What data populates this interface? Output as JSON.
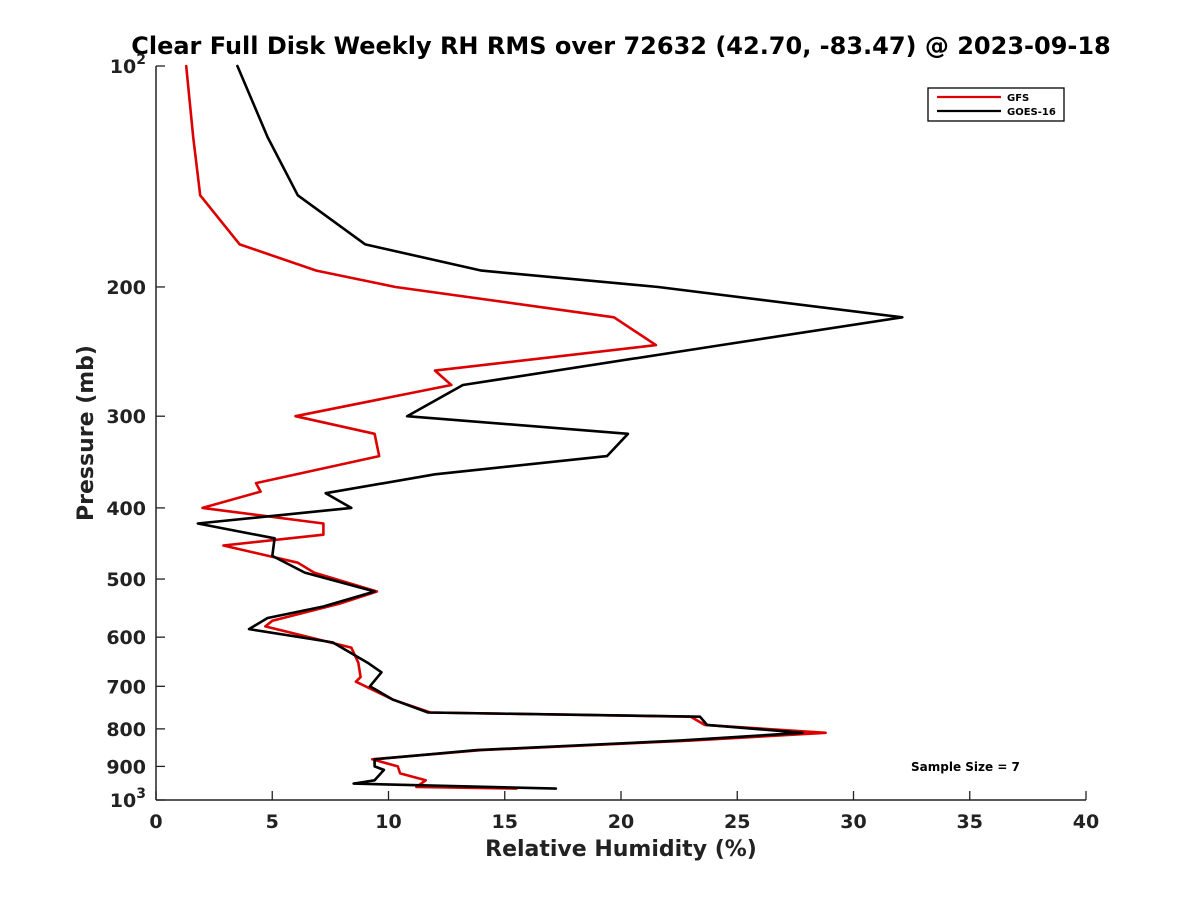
{
  "chart_data": {
    "type": "line",
    "title": "Clear Full Disk Weekly RH RMS over 72632 (42.70, -83.47) @ 2023-09-18",
    "xlabel": "Relative Humidity (%)",
    "ylabel": "Pressure (mb)",
    "xlim": [
      0,
      40
    ],
    "ylim": [
      100,
      1000
    ],
    "y_scale": "log",
    "y_reversed": true,
    "x_ticks": [
      "0",
      "5",
      "10",
      "15",
      "20",
      "25",
      "30",
      "35",
      "40"
    ],
    "y_ticks": [
      {
        "value": 100,
        "base": "10",
        "exp": "2"
      },
      {
        "value": 200,
        "label": "200"
      },
      {
        "value": 300,
        "label": "300"
      },
      {
        "value": 400,
        "label": "400"
      },
      {
        "value": 500,
        "label": "500"
      },
      {
        "value": 600,
        "label": "600"
      },
      {
        "value": 700,
        "label": "700"
      },
      {
        "value": 800,
        "label": "800"
      },
      {
        "value": 900,
        "label": "900"
      },
      {
        "value": 1000,
        "base": "10",
        "exp": "3"
      }
    ],
    "grid": false,
    "legend_position": "top-right",
    "annotation": "Sample Size = 7",
    "series": [
      {
        "name": "GFS",
        "color": "#dd0000",
        "points": [
          [
            1.3,
            100
          ],
          [
            1.6,
            125
          ],
          [
            1.9,
            150
          ],
          [
            3.6,
            175
          ],
          [
            6.9,
            190
          ],
          [
            10.3,
            200
          ],
          [
            19.7,
            220
          ],
          [
            21.5,
            240
          ],
          [
            12.0,
            260
          ],
          [
            12.7,
            272
          ],
          [
            6.0,
            300
          ],
          [
            9.4,
            317
          ],
          [
            9.6,
            340
          ],
          [
            4.3,
            370
          ],
          [
            4.5,
            380
          ],
          [
            2.0,
            400
          ],
          [
            7.2,
            420
          ],
          [
            7.2,
            435
          ],
          [
            2.9,
            450
          ],
          [
            6.1,
            475
          ],
          [
            6.8,
            490
          ],
          [
            9.5,
            520
          ],
          [
            7.9,
            540
          ],
          [
            5.0,
            570
          ],
          [
            4.7,
            580
          ],
          [
            8.4,
            620
          ],
          [
            8.7,
            650
          ],
          [
            8.8,
            680
          ],
          [
            8.6,
            690
          ],
          [
            10.2,
            730
          ],
          [
            11.8,
            760
          ],
          [
            23.0,
            770
          ],
          [
            23.6,
            790
          ],
          [
            28.8,
            810
          ],
          [
            23.0,
            830
          ],
          [
            14.0,
            855
          ],
          [
            9.3,
            880
          ],
          [
            10.4,
            900
          ],
          [
            10.5,
            920
          ],
          [
            11.6,
            940
          ],
          [
            11.2,
            960
          ],
          [
            15.5,
            965
          ]
        ]
      },
      {
        "name": "GOES-16",
        "color": "#000000",
        "points": [
          [
            3.5,
            100
          ],
          [
            4.8,
            125
          ],
          [
            6.1,
            150
          ],
          [
            9.0,
            175
          ],
          [
            14.0,
            190
          ],
          [
            21.6,
            200
          ],
          [
            32.1,
            220
          ],
          [
            24.3,
            240
          ],
          [
            13.2,
            272
          ],
          [
            10.8,
            300
          ],
          [
            20.3,
            317
          ],
          [
            19.4,
            340
          ],
          [
            12.0,
            360
          ],
          [
            7.3,
            382
          ],
          [
            8.4,
            400
          ],
          [
            1.8,
            420
          ],
          [
            5.1,
            440
          ],
          [
            5.0,
            465
          ],
          [
            6.4,
            490
          ],
          [
            9.4,
            520
          ],
          [
            7.2,
            545
          ],
          [
            4.8,
            565
          ],
          [
            4.0,
            585
          ],
          [
            7.6,
            610
          ],
          [
            9.1,
            650
          ],
          [
            9.7,
            670
          ],
          [
            9.2,
            700
          ],
          [
            10.2,
            730
          ],
          [
            11.7,
            760
          ],
          [
            23.4,
            770
          ],
          [
            23.7,
            790
          ],
          [
            27.8,
            810
          ],
          [
            22.5,
            830
          ],
          [
            13.8,
            855
          ],
          [
            9.4,
            880
          ],
          [
            9.4,
            900
          ],
          [
            9.8,
            910
          ],
          [
            9.4,
            940
          ],
          [
            8.5,
            950
          ],
          [
            17.2,
            965
          ]
        ]
      }
    ]
  }
}
